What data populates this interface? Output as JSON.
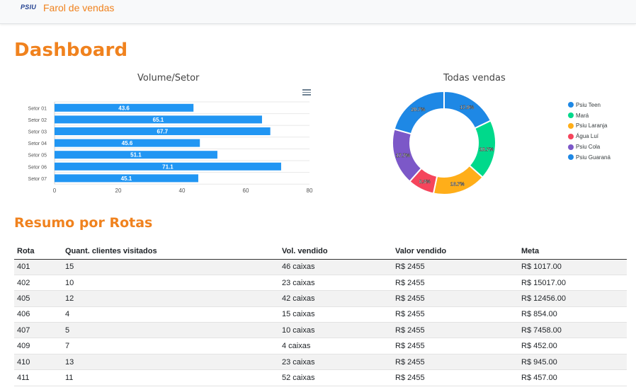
{
  "navbar": {
    "logo_text": "PSIU",
    "app_name": "Farol de vendas"
  },
  "page_title": "Dashboard",
  "bar_chart": {
    "title": "Volume/Setor",
    "chart_data": {
      "type": "bar",
      "orientation": "horizontal",
      "categories": [
        "Setor 01",
        "Setor 02",
        "Setor 03",
        "Setor 04",
        "Setor 05",
        "Setor 06",
        "Setor 07"
      ],
      "values": [
        43.6,
        65.1,
        67.7,
        45.6,
        51.1,
        71.1,
        45.1
      ],
      "xticks": [
        0,
        20,
        40,
        60,
        80
      ],
      "xlim": [
        0,
        80
      ],
      "color": "#2196f3"
    }
  },
  "donut_chart": {
    "title": "Todas vendas",
    "chart_data": {
      "type": "pie",
      "labels": [
        "Psiu Teen",
        "Mara",
        "Psiu Laranja",
        "Água Luí",
        "Psiu Cola",
        "Psiu Guaraná"
      ],
      "values": [
        17.9,
        18.7,
        16.7,
        8.3,
        17.7,
        20.7
      ],
      "display_labels": [
        "17.9%",
        "18.7%",
        "16.7%",
        "8.3%",
        "17.7%",
        "20.7%"
      ],
      "colors": [
        "#1e88e5",
        "#00d98b",
        "#ffae19",
        "#f5455c",
        "#7c58c8",
        "#1e88e5"
      ]
    },
    "legend": [
      "Psiu Teen",
      "Mará",
      "Psiu Laranja",
      "Água Luí",
      "Psiu Cola",
      "Psiu Guaraná"
    ]
  },
  "section_title": "Resumo por Rotas",
  "table": {
    "headers": [
      "Rota",
      "Quant. clientes visitados",
      "Vol. vendido",
      "Valor vendido",
      "Meta"
    ],
    "rows": [
      [
        "401",
        "15",
        "46 caixas",
        "R$ 2455",
        "R$ 1017.00"
      ],
      [
        "402",
        "10",
        "23 caixas",
        "R$ 2455",
        "R$ 15017.00"
      ],
      [
        "405",
        "12",
        "42 caixas",
        "R$ 2455",
        "R$ 12456.00"
      ],
      [
        "406",
        "4",
        "15 caixas",
        "R$ 2455",
        "R$ 854.00"
      ],
      [
        "407",
        "5",
        "10 caixas",
        "R$ 2455",
        "R$ 7458.00"
      ],
      [
        "409",
        "7",
        "4 caixas",
        "R$ 2455",
        "R$ 452.00"
      ],
      [
        "410",
        "13",
        "23 caixas",
        "R$ 2455",
        "R$ 945.00"
      ],
      [
        "411",
        "11",
        "52 caixas",
        "R$ 2455",
        "R$ 457.00"
      ]
    ]
  }
}
